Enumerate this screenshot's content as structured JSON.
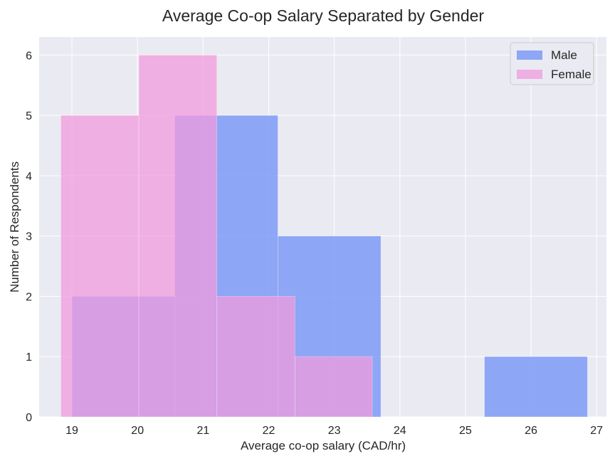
{
  "chart_data": {
    "type": "bar",
    "subtype": "overlapping-histogram",
    "title": "Average Co-op Salary Separated by Gender",
    "xlabel": "Average co-op salary (CAD/hr)",
    "ylabel": "Number of Respondents",
    "xlim": [
      18.5,
      27.15
    ],
    "ylim": [
      0,
      6.3
    ],
    "xticks": [
      19,
      20,
      21,
      22,
      23,
      24,
      25,
      26,
      27
    ],
    "yticks": [
      0,
      1,
      2,
      3,
      4,
      5,
      6
    ],
    "grid": true,
    "legend_position": "top-right",
    "series": [
      {
        "name": "Male",
        "color": "#6d8ff5",
        "bins": [
          {
            "x0": 19.0,
            "x1": 20.57,
            "count": 2
          },
          {
            "x0": 20.57,
            "x1": 22.14,
            "count": 5
          },
          {
            "x0": 22.14,
            "x1": 23.71,
            "count": 3
          },
          {
            "x0": 23.71,
            "x1": 25.29,
            "count": 0
          },
          {
            "x0": 25.29,
            "x1": 26.86,
            "count": 1
          }
        ]
      },
      {
        "name": "Female",
        "color": "#f09bdc",
        "bins": [
          {
            "x0": 18.83,
            "x1": 20.02,
            "count": 5
          },
          {
            "x0": 20.02,
            "x1": 21.21,
            "count": 6
          },
          {
            "x0": 21.21,
            "x1": 22.4,
            "count": 2
          },
          {
            "x0": 22.4,
            "x1": 23.58,
            "count": 1
          }
        ]
      }
    ]
  }
}
